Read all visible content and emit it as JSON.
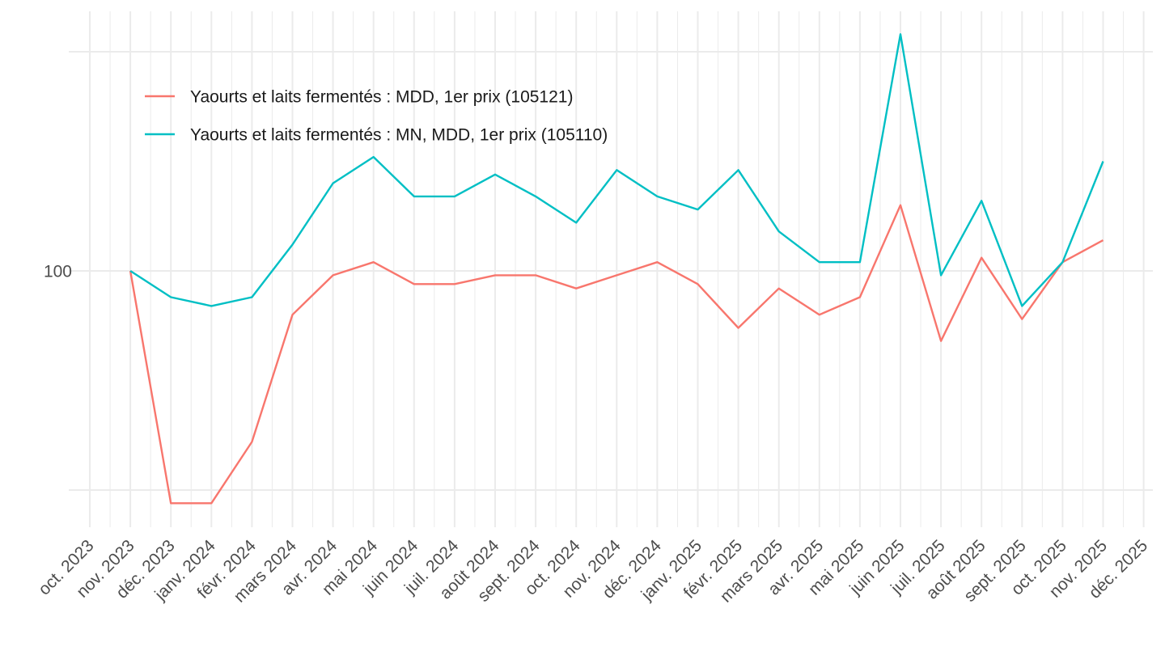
{
  "chart_data": {
    "type": "line",
    "title": "",
    "xlabel": "",
    "ylabel": "",
    "x": [
      "nov. 2023",
      "déc. 2023",
      "janv. 2024",
      "févr. 2024",
      "mars 2024",
      "avr. 2024",
      "mai 2024",
      "juin 2024",
      "juil. 2024",
      "août 2024",
      "sept. 2024",
      "oct. 2024",
      "nov. 2024",
      "déc. 2024",
      "janv. 2025",
      "févr. 2025",
      "mars 2025",
      "avr. 2025",
      "mai 2025",
      "juin 2025",
      "juil. 2025",
      "août 2025",
      "sept. 2025",
      "oct. 2025",
      "nov. 2025"
    ],
    "x_tick_labels": [
      "oct. 2023",
      "nov. 2023",
      "déc. 2023",
      "janv. 2024",
      "févr. 2024",
      "mars 2024",
      "avr. 2024",
      "mai 2024",
      "juin 2024",
      "juil. 2024",
      "août 2024",
      "sept. 2024",
      "oct. 2024",
      "nov. 2024",
      "déc. 2024",
      "janv. 2025",
      "févr. 2025",
      "mars 2025",
      "avr. 2025",
      "mai 2025",
      "juin 2025",
      "juil. 2025",
      "août 2025",
      "sept. 2025",
      "oct. 2025",
      "nov. 2025",
      "déc. 2025"
    ],
    "x_range": [
      "oct. 2023",
      "déc. 2025"
    ],
    "y_ticks": [
      100
    ],
    "y_tick_labels": [
      "100"
    ],
    "ylim": [
      94.3,
      106.1
    ],
    "y_major_grid": [
      95,
      100,
      105
    ],
    "grid": true,
    "legend_position": "top-left",
    "series": [
      {
        "name": "Yaourts et laits fermentés : MDD, 1er prix (105121)",
        "color": "#F8766D",
        "values": [
          100.0,
          94.7,
          94.7,
          96.1,
          99.0,
          99.9,
          100.2,
          99.7,
          99.7,
          99.9,
          99.9,
          99.6,
          99.9,
          100.2,
          99.7,
          98.7,
          99.6,
          99.0,
          99.4,
          101.5,
          98.4,
          100.3,
          98.9,
          100.2,
          100.7
        ]
      },
      {
        "name": "Yaourts et laits fermentés : MN, MDD, 1er prix (105110)",
        "color": "#00BFC4",
        "values": [
          100.0,
          99.4,
          99.2,
          99.4,
          100.6,
          102.0,
          102.6,
          101.7,
          101.7,
          102.2,
          101.7,
          101.1,
          102.3,
          101.7,
          101.4,
          102.3,
          100.9,
          100.2,
          100.2,
          105.4,
          99.9,
          101.6,
          99.2,
          100.2,
          102.5
        ]
      }
    ]
  }
}
